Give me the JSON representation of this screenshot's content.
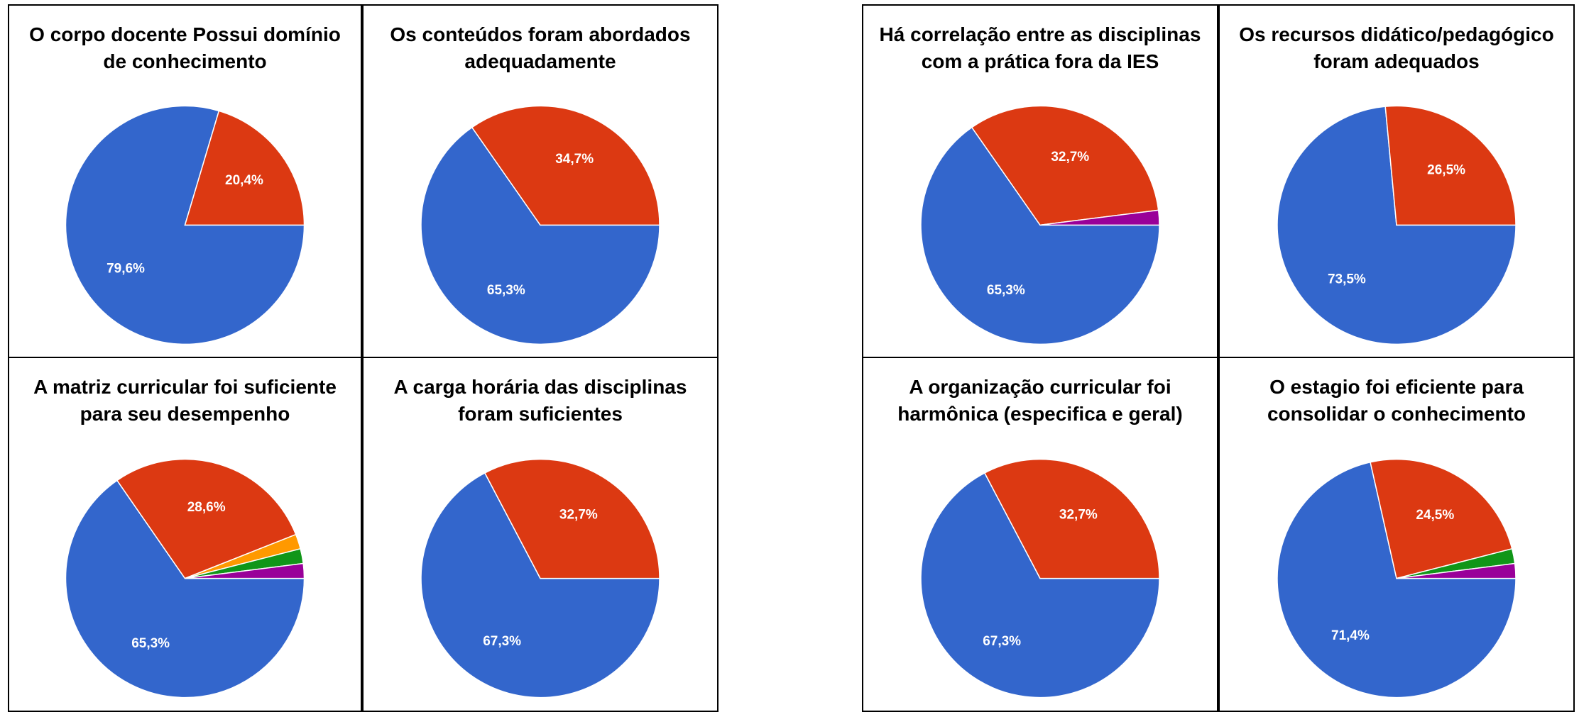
{
  "chart_data": [
    {
      "type": "pie",
      "title": "O corpo docente Possui domínio de conhecimento",
      "values": [
        79.6,
        20.4
      ],
      "value_labels": [
        "79,6%",
        "20,4%"
      ],
      "colors": [
        "#3366cc",
        "#dc3912"
      ]
    },
    {
      "type": "pie",
      "title": "Os conteúdos foram abordados adequadamente",
      "values": [
        65.3,
        34.7
      ],
      "value_labels": [
        "65,3%",
        "34,7%"
      ],
      "colors": [
        "#3366cc",
        "#dc3912"
      ]
    },
    {
      "type": "pie",
      "title": "Há correlação entre as disciplinas com a prática fora da IES",
      "values": [
        65.3,
        32.7,
        2.0
      ],
      "value_labels": [
        "65,3%",
        "32,7%",
        null
      ],
      "colors": [
        "#3366cc",
        "#dc3912",
        "#990099"
      ]
    },
    {
      "type": "pie",
      "title": "Os recursos didático/pedagógico foram adequados",
      "values": [
        73.5,
        26.5
      ],
      "value_labels": [
        "73,5%",
        "26,5%"
      ],
      "colors": [
        "#3366cc",
        "#dc3912"
      ]
    },
    {
      "type": "pie",
      "title": "A matriz curricular foi suficiente para seu desempenho",
      "values": [
        65.3,
        28.6,
        2.0,
        2.0,
        2.0
      ],
      "value_labels": [
        "65,3%",
        "28,6%",
        null,
        null,
        null
      ],
      "colors": [
        "#3366cc",
        "#dc3912",
        "#ff9900",
        "#109618",
        "#990099"
      ]
    },
    {
      "type": "pie",
      "title": "A carga horária das disciplinas foram suficientes",
      "values": [
        67.3,
        32.7
      ],
      "value_labels": [
        "67,3%",
        "32,7%"
      ],
      "colors": [
        "#3366cc",
        "#dc3912"
      ]
    },
    {
      "type": "pie",
      "title": "A organização curricular foi harmônica (especifica e geral)",
      "values": [
        67.3,
        32.7
      ],
      "value_labels": [
        "67,3%",
        "32,7%"
      ],
      "colors": [
        "#3366cc",
        "#dc3912"
      ]
    },
    {
      "type": "pie",
      "title": "O estagio foi eficiente para consolidar o conhecimento",
      "values": [
        71.4,
        24.5,
        2.0,
        2.0
      ],
      "value_labels": [
        "71,4%",
        "24,5%",
        null,
        null
      ],
      "colors": [
        "#3366cc",
        "#dc3912",
        "#109618",
        "#990099"
      ]
    }
  ]
}
